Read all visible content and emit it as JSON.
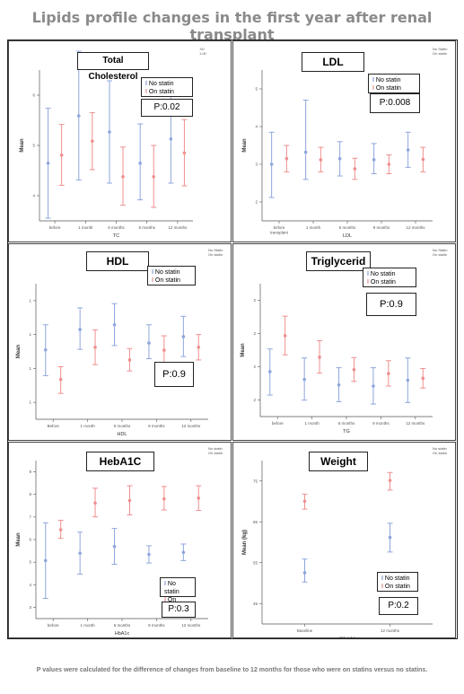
{
  "title": "Lipids profile changes in the first year after renal transplant",
  "footnote": "P values were calculated for the difference of changes from baseline to 12 months for those who were on statins versus no statins.",
  "colors": {
    "no_statin": "#8fa6dc",
    "on_statin": "#ef8f8f"
  },
  "legend": {
    "no_statin": "No statin",
    "on_statin": "On statin"
  },
  "chart_data": [
    {
      "type": "scatter",
      "title": "Total Cholesterol",
      "p_value": "P:0.02",
      "xlabel": "TC",
      "ylabel": "Mean",
      "corner_legend": [
        ".00",
        "1.00"
      ],
      "categories": [
        "before",
        "1 month",
        "6 months",
        "9 months",
        "12 months"
      ],
      "yticks": [
        "4",
        "5",
        "6"
      ],
      "ylim": [
        3.9,
        6.7
      ],
      "series": [
        {
          "name": "No statin",
          "mean": [
            4.97,
            5.85,
            5.55,
            4.97,
            5.42
          ],
          "low": [
            3.95,
            4.66,
            4.6,
            4.29,
            4.6
          ],
          "high": [
            5.99,
            7.05,
            6.5,
            5.7,
            6.25
          ]
        },
        {
          "name": "On statin",
          "mean": [
            5.12,
            5.38,
            4.72,
            4.72,
            5.16
          ],
          "low": [
            4.56,
            4.85,
            4.19,
            4.15,
            4.55
          ],
          "high": [
            5.69,
            5.91,
            5.27,
            5.3,
            5.78
          ]
        }
      ]
    },
    {
      "type": "scatter",
      "title": "LDL",
      "p_value": "P:0.008",
      "xlabel": "LDL",
      "ylabel": "Mean",
      "corner_legend": [
        "No Statin",
        "On statin"
      ],
      "categories": [
        "before transplant",
        "1 month",
        "6 months",
        "9 months",
        "12 months"
      ],
      "yticks": [
        "2",
        "3",
        "4",
        "5"
      ],
      "ylim": [
        1.6,
        5.6
      ],
      "series": [
        {
          "name": "No statin",
          "mean": [
            3.1,
            3.42,
            3.25,
            3.22,
            3.48
          ],
          "low": [
            2.22,
            2.7,
            2.79,
            2.85,
            3.02
          ],
          "high": [
            3.95,
            4.8,
            3.7,
            3.65,
            3.95
          ]
        },
        {
          "name": "On statin",
          "mean": [
            3.25,
            3.22,
            2.98,
            3.1,
            3.23
          ],
          "low": [
            2.9,
            2.9,
            2.7,
            2.85,
            2.9
          ],
          "high": [
            3.6,
            3.55,
            3.26,
            3.35,
            3.55
          ]
        }
      ]
    },
    {
      "type": "scatter",
      "title": "HDL",
      "p_value": "P:0.9",
      "xlabel": "HDL",
      "ylabel": "Mean",
      "corner_legend": [
        "No Statin",
        "On statin"
      ],
      "categories": [
        "Before",
        "1 month",
        "6 months",
        "9 months",
        "12 months"
      ],
      "yticks": [
        "1",
        "1",
        "1",
        "1"
      ],
      "ylim": [
        0,
        3.2
      ],
      "series": [
        {
          "name": "No statin",
          "mean": [
            1.64,
            2.12,
            2.23,
            1.8,
            1.95
          ],
          "low": [
            1.03,
            1.65,
            1.74,
            1.43,
            1.48
          ],
          "high": [
            2.23,
            2.63,
            2.73,
            2.23,
            2.43
          ]
        },
        {
          "name": "On statin",
          "mean": [
            0.94,
            1.7,
            1.4,
            1.63,
            1.7
          ],
          "low": [
            0.61,
            1.29,
            1.14,
            1.3,
            1.4
          ],
          "high": [
            1.24,
            2.11,
            1.67,
            1.97,
            2.0
          ]
        }
      ]
    },
    {
      "type": "scatter",
      "title": "Triglycerid",
      "p_value": "P:0.9",
      "xlabel": "TG",
      "ylabel": "Mean",
      "corner_legend": [
        "No Statin",
        "On statin"
      ],
      "categories": [
        "before",
        "1 month",
        "6 months",
        "9 months",
        "12 months"
      ],
      "yticks": [
        "2",
        "2",
        "2",
        "2"
      ],
      "ylim": [
        0,
        3.4
      ],
      "series": [
        {
          "name": "No statin",
          "mean": [
            1.15,
            0.95,
            0.81,
            0.78,
            0.93
          ],
          "low": [
            0.55,
            0.42,
            0.38,
            0.32,
            0.36
          ],
          "high": [
            1.73,
            1.5,
            1.25,
            1.25,
            1.5
          ]
        },
        {
          "name": "On statin",
          "mean": [
            2.07,
            1.52,
            1.2,
            1.1,
            0.98
          ],
          "low": [
            1.58,
            1.11,
            0.9,
            0.78,
            0.73
          ],
          "high": [
            2.57,
            1.94,
            1.51,
            1.43,
            1.23
          ]
        }
      ]
    },
    {
      "type": "scatter",
      "title": "HebA1C",
      "p_value": "P:0.3",
      "xlabel": "HbA1c",
      "ylabel": "Mean",
      "corner_legend": [
        "No statin",
        "On statin"
      ],
      "categories": [
        "before",
        "1 month",
        "6 months",
        "9 months",
        "12 months"
      ],
      "yticks": [
        "3",
        "4",
        "5",
        "6",
        "7",
        "8",
        "9"
      ],
      "ylim": [
        3,
        9.4
      ],
      "series": [
        {
          "name": "No statin",
          "mean": [
            5.35,
            5.65,
            5.92,
            5.6,
            5.68
          ],
          "low": [
            3.82,
            4.8,
            5.2,
            5.25,
            5.35
          ],
          "high": [
            6.88,
            6.5,
            6.65,
            5.95,
            6.02
          ]
        },
        {
          "name": "On statin",
          "mean": [
            6.6,
            7.68,
            7.78,
            7.85,
            7.88
          ],
          "low": [
            6.25,
            7.12,
            7.2,
            7.4,
            7.38
          ],
          "high": [
            6.98,
            8.28,
            8.38,
            8.35,
            8.38
          ]
        }
      ]
    },
    {
      "type": "scatter",
      "title": "Weight",
      "p_value": "P:0.2",
      "xlabel": "Weight",
      "ylabel": "Mean (kg)",
      "corner_legend": [
        "No statin",
        "On statin"
      ],
      "categories": [
        "Baseline",
        "12 months"
      ],
      "yticks": [
        "45",
        "55",
        "65",
        "75"
      ],
      "ylim": [
        45,
        82
      ],
      "series": [
        {
          "name": "No statin",
          "mean": [
            56.6,
            64.6
          ],
          "low": [
            54.5,
            61.3
          ],
          "high": [
            59.7,
            67.8
          ]
        },
        {
          "name": "On statin",
          "mean": [
            72.8,
            77.5
          ],
          "low": [
            71,
            75.3
          ],
          "high": [
            74.4,
            79.3
          ]
        }
      ]
    }
  ]
}
